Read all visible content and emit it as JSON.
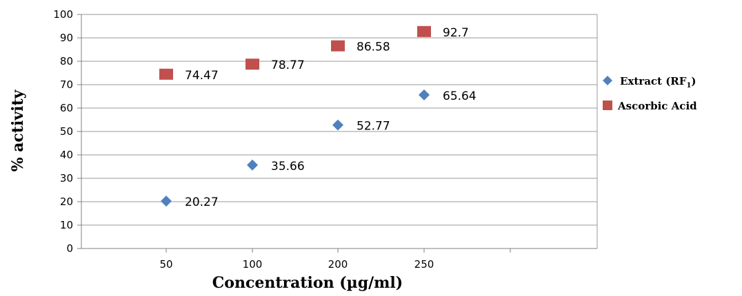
{
  "chart_data": {
    "type": "scatter",
    "title": "",
    "xlabel": "Concentration (µg/ml)",
    "ylabel": "% activity",
    "categories": [
      "50",
      "100",
      "200",
      "250"
    ],
    "ylim": [
      0,
      100
    ],
    "yticks": [
      0,
      10,
      20,
      30,
      40,
      50,
      60,
      70,
      80,
      90,
      100
    ],
    "grid": "horizontal",
    "legend_position": "right",
    "series": [
      {
        "name": "Extract (RF1)",
        "name_main": "Extract (RF",
        "name_sub": "1",
        "name_end": ")",
        "marker": "diamond",
        "color": "#4F81BD",
        "values": [
          20.27,
          35.66,
          52.77,
          65.64
        ],
        "labels": [
          "20.27",
          "35.66",
          "52.77",
          "65.64"
        ]
      },
      {
        "name": "Ascorbic Acid",
        "marker": "square",
        "color": "#C0504D",
        "values": [
          74.47,
          78.77,
          86.58,
          92.7
        ],
        "labels": [
          "74.47",
          "78.77",
          "86.58",
          "92.7"
        ]
      }
    ]
  }
}
